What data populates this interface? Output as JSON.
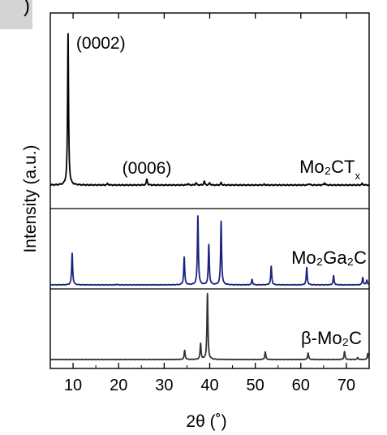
{
  "panel_label": ")",
  "chart_data": {
    "type": "line",
    "xlabel": "2θ (˚)",
    "ylabel": "Intensity (a.u.)",
    "xlim": [
      5,
      75
    ],
    "x_ticks": [
      10,
      20,
      30,
      40,
      50,
      60,
      70
    ],
    "grid": false,
    "legend": "none",
    "panels": [
      {
        "name": "Mo₂CTₓ",
        "label_main": "Mo₂CT",
        "label_sub": "x",
        "color": "#000000",
        "baseline": 0,
        "peaks": [
          {
            "x": 8.9,
            "y": 100
          },
          {
            "x": 17.6,
            "y": 1
          },
          {
            "x": 26.2,
            "y": 4
          },
          {
            "x": 35.2,
            "y": 1
          },
          {
            "x": 37.0,
            "y": 1.5
          },
          {
            "x": 38.8,
            "y": 2.5
          },
          {
            "x": 40.0,
            "y": 1.5
          },
          {
            "x": 42.5,
            "y": 1.5
          },
          {
            "x": 52.0,
            "y": 0.5
          },
          {
            "x": 61.8,
            "y": 1
          },
          {
            "x": 65.2,
            "y": 1.5
          },
          {
            "x": 73.5,
            "y": 1
          }
        ],
        "annotations": [
          {
            "text": "(0002)",
            "x": 8.9
          },
          {
            "text": "(0006)",
            "x": 26.2
          }
        ]
      },
      {
        "name": "Mo₂Ga₂C",
        "label_main": "Mo₂Ga₂C",
        "label_sub": "",
        "color": "#1a237e",
        "baseline": 0,
        "peaks": [
          {
            "x": 9.8,
            "y": 46
          },
          {
            "x": 19.6,
            "y": 1
          },
          {
            "x": 34.4,
            "y": 40
          },
          {
            "x": 37.4,
            "y": 100
          },
          {
            "x": 39.8,
            "y": 58
          },
          {
            "x": 42.5,
            "y": 92
          },
          {
            "x": 49.3,
            "y": 8
          },
          {
            "x": 53.5,
            "y": 27
          },
          {
            "x": 61.3,
            "y": 25
          },
          {
            "x": 67.2,
            "y": 13
          },
          {
            "x": 73.6,
            "y": 11
          },
          {
            "x": 74.5,
            "y": 7
          }
        ],
        "annotations": []
      },
      {
        "name": "β-Mo₂C",
        "label_main": "β-Mo₂C",
        "label_sub": "",
        "color": "#333333",
        "baseline": 0,
        "peaks": [
          {
            "x": 34.5,
            "y": 14
          },
          {
            "x": 38.0,
            "y": 24
          },
          {
            "x": 39.5,
            "y": 100
          },
          {
            "x": 52.2,
            "y": 12
          },
          {
            "x": 61.6,
            "y": 10
          },
          {
            "x": 69.6,
            "y": 12
          },
          {
            "x": 72.5,
            "y": 3
          },
          {
            "x": 74.7,
            "y": 9
          }
        ],
        "annotations": []
      }
    ]
  }
}
